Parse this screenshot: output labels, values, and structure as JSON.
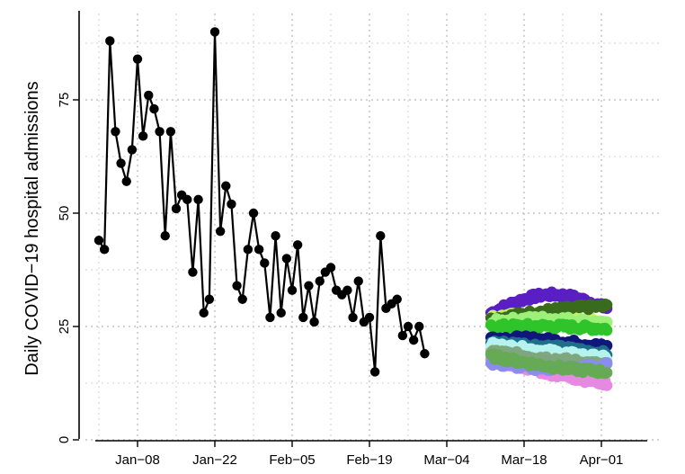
{
  "chart_data": {
    "type": "scatter",
    "title": "",
    "xlabel": "",
    "ylabel": "Daily COVID−19 hospital admissions",
    "x_ticks": [
      "Jan−08",
      "Jan−22",
      "Feb−05",
      "Feb−19",
      "Mar−04",
      "Mar−18",
      "Apr−01"
    ],
    "y_ticks": [
      "0",
      "25",
      "50",
      "75"
    ],
    "xlim_days": [
      -8,
      95
    ],
    "ylim": [
      0,
      91
    ],
    "grid": true,
    "legend": "none",
    "observed": {
      "start_day": 0,
      "color": "#000000",
      "values": [
        44,
        42,
        88,
        68,
        61,
        57,
        64,
        84,
        67,
        76,
        73,
        68,
        45,
        68,
        51,
        54,
        53,
        37,
        53,
        28,
        31,
        90,
        46,
        56,
        52,
        34,
        31,
        42,
        50,
        42,
        39,
        27,
        45,
        28,
        40,
        33,
        43,
        27,
        34,
        26,
        35,
        37,
        38,
        33,
        32,
        33,
        27,
        35,
        26,
        27,
        15,
        45,
        29,
        30,
        31,
        23,
        25,
        22,
        25,
        19
      ]
    },
    "forecast": {
      "start_day": 71,
      "end_day": 92,
      "series": [
        {
          "color": "#5a1fc4",
          "start": 28,
          "end": 29,
          "bump": 3.5
        },
        {
          "color": "#c6f06a",
          "start": 27,
          "end": 26,
          "bump": 1.0
        },
        {
          "color": "#3a6b1d",
          "start": 26.5,
          "end": 29.5,
          "bump": 0.5
        },
        {
          "color": "#9df07a",
          "start": 26,
          "end": 25.5,
          "bump": 1.0
        },
        {
          "color": "#2fc52a",
          "start": 25,
          "end": 24.5,
          "bump": 0.3
        },
        {
          "color": "#11177a",
          "start": 22.5,
          "end": 20.5,
          "bump": 0.5
        },
        {
          "color": "#1f6e8a",
          "start": 21.5,
          "end": 19,
          "bump": 0.3
        },
        {
          "color": "#b6f2ee",
          "start": 21,
          "end": 18,
          "bump": 0.0
        },
        {
          "color": "#7fa77f",
          "start": 19.5,
          "end": 16.5,
          "bump": 0.0
        },
        {
          "color": "#e58ae0",
          "start": 18,
          "end": 12.5,
          "bump": -0.5
        },
        {
          "color": "#8c8cf0",
          "start": 17,
          "end": 16.5,
          "bump": -1.0
        },
        {
          "color": "#66aa55",
          "start": 18.5,
          "end": 15,
          "bump": -0.5
        }
      ]
    }
  }
}
